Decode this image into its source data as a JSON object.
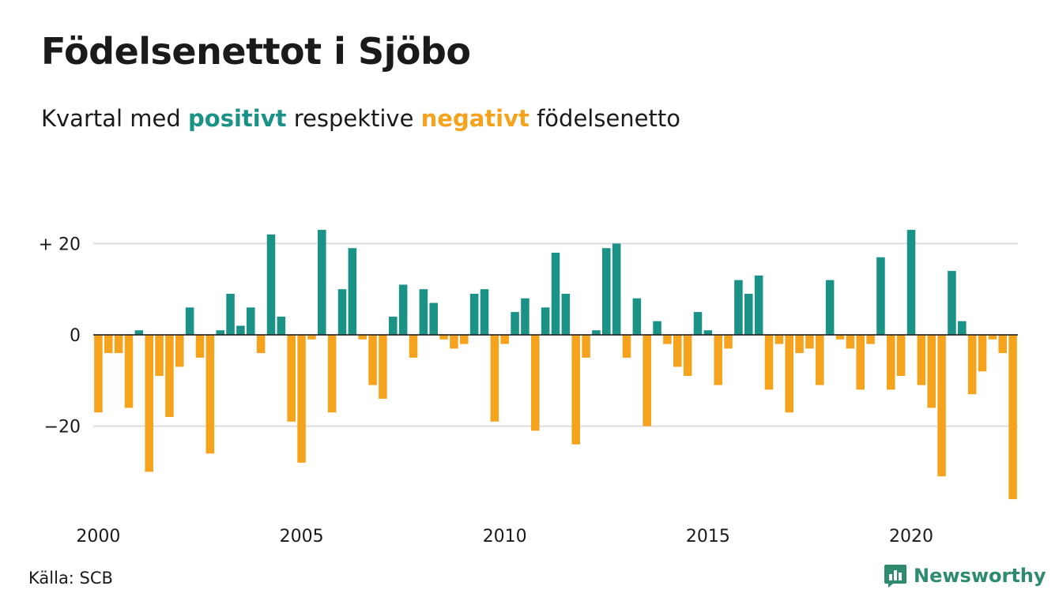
{
  "title": "Födelsenettot i Sjöbo",
  "subtitle": {
    "prefix": "Kvartal med",
    "positive_word": "positivt",
    "middle": "respektive",
    "negative_word": "negativt",
    "suffix": "födelsenetto"
  },
  "source": "Källa: SCB",
  "brand": {
    "name": "Newsworthy",
    "icon": "newsworthy-logo-icon",
    "color": "#2e8b6e"
  },
  "colors": {
    "positive": "#1a9285",
    "negative": "#f5a31d",
    "grid": "#dddddd"
  },
  "chart_data": {
    "type": "bar",
    "x_start": "2000 Q1",
    "x_ticks": [
      "2000",
      "2005",
      "2010",
      "2015",
      "2020"
    ],
    "y_ticks": [
      {
        "value": 20,
        "label": "+ 20"
      },
      {
        "value": 0,
        "label": "0"
      },
      {
        "value": -20,
        "label": "−20"
      }
    ],
    "ylim": [
      -37,
      26
    ],
    "grid": true,
    "values": [
      -17,
      -4,
      -4,
      -16,
      1,
      -30,
      -9,
      -18,
      -7,
      6,
      -5,
      -26,
      1,
      9,
      2,
      6,
      -4,
      22,
      4,
      -19,
      -28,
      -1,
      23,
      -17,
      10,
      19,
      -1,
      -11,
      -14,
      4,
      11,
      -5,
      10,
      7,
      -1,
      -3,
      -2,
      9,
      10,
      -19,
      -2,
      5,
      8,
      -21,
      6,
      18,
      9,
      -24,
      -5,
      1,
      19,
      20,
      -5,
      8,
      -20,
      3,
      -2,
      -7,
      -9,
      5,
      1,
      -11,
      -3,
      12,
      9,
      13,
      -12,
      -2,
      -17,
      -4,
      -3,
      -11,
      12,
      -1,
      -3,
      -12,
      -2,
      17,
      -12,
      -9,
      23,
      -11,
      -16,
      -31,
      14,
      3,
      -13,
      -8,
      -1,
      -4,
      -36
    ]
  }
}
